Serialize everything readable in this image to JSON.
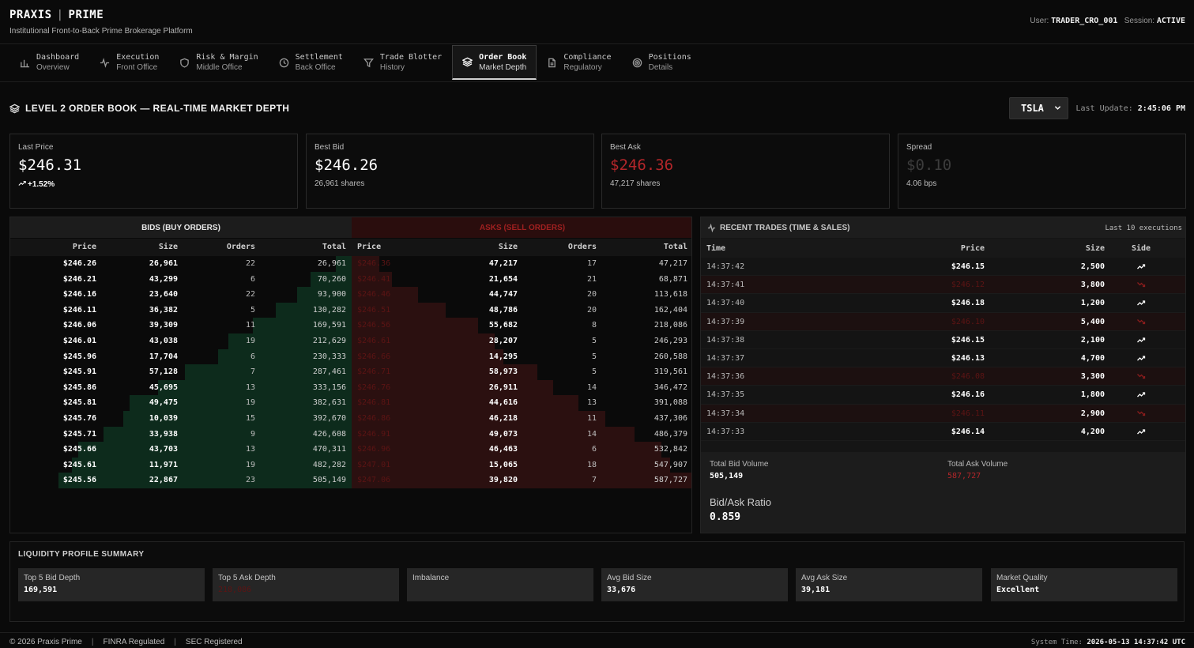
{
  "header": {
    "brand_left": "PRAXIS",
    "brand_sep": "|",
    "brand_right": "PRIME",
    "tagline": "Institutional Front-to-Back Prime Brokerage Platform",
    "user_label": "User:",
    "user_value": "TRADER_CRO_001",
    "session_label": "Session:",
    "session_value": "ACTIVE"
  },
  "nav": {
    "tabs": [
      {
        "title": "Dashboard",
        "subtitle": "Overview",
        "icon": "bar-chart-icon"
      },
      {
        "title": "Execution",
        "subtitle": "Front Office",
        "icon": "activity-icon"
      },
      {
        "title": "Risk & Margin",
        "subtitle": "Middle Office",
        "icon": "shield-icon"
      },
      {
        "title": "Settlement",
        "subtitle": "Back Office",
        "icon": "clock-icon"
      },
      {
        "title": "Trade Blotter",
        "subtitle": "History",
        "icon": "filter-icon"
      },
      {
        "title": "Order Book",
        "subtitle": "Market Depth",
        "icon": "layers-icon",
        "active": true
      },
      {
        "title": "Compliance",
        "subtitle": "Regulatory",
        "icon": "document-icon"
      },
      {
        "title": "Positions",
        "subtitle": "Details",
        "icon": "target-icon"
      }
    ]
  },
  "section": {
    "title": "LEVEL 2 ORDER BOOK — REAL-TIME MARKET DEPTH",
    "symbol": "TSLA",
    "last_update_label": "Last Update:",
    "last_update_value": "2:45:06 PM"
  },
  "stats": {
    "last_price": {
      "label": "Last Price",
      "value": "$246.31",
      "sub": "+1.52%"
    },
    "best_bid": {
      "label": "Best Bid",
      "value": "$246.26",
      "sub": "26,961 shares"
    },
    "best_ask": {
      "label": "Best Ask",
      "value": "$246.36",
      "sub": "47,217 shares"
    },
    "spread": {
      "label": "Spread",
      "value": "$0.10",
      "sub": "4.06 bps"
    }
  },
  "orderbook": {
    "bids_title": "BIDS (BUY ORDERS)",
    "asks_title": "ASKS (SELL ORDERS)",
    "columns": {
      "price": "Price",
      "size": "Size",
      "orders": "Orders",
      "total": "Total"
    },
    "max_total": 587727,
    "bids": [
      {
        "price": "$246.26",
        "size": "26,961",
        "orders": "22",
        "total": "26,961",
        "cum": 26961
      },
      {
        "price": "$246.21",
        "size": "43,299",
        "orders": "6",
        "total": "70,260",
        "cum": 70260
      },
      {
        "price": "$246.16",
        "size": "23,640",
        "orders": "22",
        "total": "93,900",
        "cum": 93900
      },
      {
        "price": "$246.11",
        "size": "36,382",
        "orders": "5",
        "total": "130,282",
        "cum": 130282
      },
      {
        "price": "$246.06",
        "size": "39,309",
        "orders": "11",
        "total": "169,591",
        "cum": 169591
      },
      {
        "price": "$246.01",
        "size": "43,038",
        "orders": "19",
        "total": "212,629",
        "cum": 212629
      },
      {
        "price": "$245.96",
        "size": "17,704",
        "orders": "6",
        "total": "230,333",
        "cum": 230333
      },
      {
        "price": "$245.91",
        "size": "57,128",
        "orders": "7",
        "total": "287,461",
        "cum": 287461
      },
      {
        "price": "$245.86",
        "size": "45,695",
        "orders": "13",
        "total": "333,156",
        "cum": 333156
      },
      {
        "price": "$245.81",
        "size": "49,475",
        "orders": "19",
        "total": "382,631",
        "cum": 382631
      },
      {
        "price": "$245.76",
        "size": "10,039",
        "orders": "15",
        "total": "392,670",
        "cum": 392670
      },
      {
        "price": "$245.71",
        "size": "33,938",
        "orders": "9",
        "total": "426,608",
        "cum": 426608
      },
      {
        "price": "$245.66",
        "size": "43,703",
        "orders": "13",
        "total": "470,311",
        "cum": 470311
      },
      {
        "price": "$245.61",
        "size": "11,971",
        "orders": "19",
        "total": "482,282",
        "cum": 482282
      },
      {
        "price": "$245.56",
        "size": "22,867",
        "orders": "23",
        "total": "505,149",
        "cum": 505149
      }
    ],
    "asks": [
      {
        "price": "$246.36",
        "size": "47,217",
        "orders": "17",
        "total": "47,217",
        "cum": 47217
      },
      {
        "price": "$246.41",
        "size": "21,654",
        "orders": "21",
        "total": "68,871",
        "cum": 68871
      },
      {
        "price": "$246.46",
        "size": "44,747",
        "orders": "20",
        "total": "113,618",
        "cum": 113618
      },
      {
        "price": "$246.51",
        "size": "48,786",
        "orders": "20",
        "total": "162,404",
        "cum": 162404
      },
      {
        "price": "$246.56",
        "size": "55,682",
        "orders": "8",
        "total": "218,086",
        "cum": 218086
      },
      {
        "price": "$246.61",
        "size": "28,207",
        "orders": "5",
        "total": "246,293",
        "cum": 246293
      },
      {
        "price": "$246.66",
        "size": "14,295",
        "orders": "5",
        "total": "260,588",
        "cum": 260588
      },
      {
        "price": "$246.71",
        "size": "58,973",
        "orders": "5",
        "total": "319,561",
        "cum": 319561
      },
      {
        "price": "$246.76",
        "size": "26,911",
        "orders": "14",
        "total": "346,472",
        "cum": 346472
      },
      {
        "price": "$246.81",
        "size": "44,616",
        "orders": "13",
        "total": "391,088",
        "cum": 391088
      },
      {
        "price": "$246.86",
        "size": "46,218",
        "orders": "11",
        "total": "437,306",
        "cum": 437306
      },
      {
        "price": "$246.91",
        "size": "49,073",
        "orders": "14",
        "total": "486,379",
        "cum": 486379
      },
      {
        "price": "$246.96",
        "size": "46,463",
        "orders": "6",
        "total": "532,842",
        "cum": 532842
      },
      {
        "price": "$247.01",
        "size": "15,065",
        "orders": "18",
        "total": "547,907",
        "cum": 547907
      },
      {
        "price": "$247.06",
        "size": "39,820",
        "orders": "7",
        "total": "587,727",
        "cum": 587727
      }
    ]
  },
  "trades": {
    "title": "RECENT TRADES (TIME & SALES)",
    "count_label": "Last 10 executions",
    "columns": {
      "time": "Time",
      "price": "Price",
      "size": "Size",
      "side": "Side"
    },
    "rows": [
      {
        "time": "14:37:42",
        "price": "$246.15",
        "size": "2,500",
        "side": "buy"
      },
      {
        "time": "14:37:41",
        "price": "$246.12",
        "size": "3,800",
        "side": "sell"
      },
      {
        "time": "14:37:40",
        "price": "$246.18",
        "size": "1,200",
        "side": "buy"
      },
      {
        "time": "14:37:39",
        "price": "$246.10",
        "size": "5,400",
        "side": "sell"
      },
      {
        "time": "14:37:38",
        "price": "$246.15",
        "size": "2,100",
        "side": "buy"
      },
      {
        "time": "14:37:37",
        "price": "$246.13",
        "size": "4,700",
        "side": "buy"
      },
      {
        "time": "14:37:36",
        "price": "$246.08",
        "size": "3,300",
        "side": "sell"
      },
      {
        "time": "14:37:35",
        "price": "$246.16",
        "size": "1,800",
        "side": "buy"
      },
      {
        "time": "14:37:34",
        "price": "$246.11",
        "size": "2,900",
        "side": "sell"
      },
      {
        "time": "14:37:33",
        "price": "$246.14",
        "size": "4,200",
        "side": "buy"
      }
    ],
    "total_bid_label": "Total Bid Volume",
    "total_bid_value": "505,149",
    "total_ask_label": "Total Ask Volume",
    "total_ask_value": "587,727",
    "ratio_label": "Bid/Ask Ratio",
    "ratio_value": "0.859"
  },
  "liquidity": {
    "title": "LIQUIDITY PROFILE SUMMARY",
    "cards": [
      {
        "label": "Top 5 Bid Depth",
        "value": "169,591"
      },
      {
        "label": "Top 5 Ask Depth",
        "value": "218,086"
      },
      {
        "label": "Imbalance",
        "value": ""
      },
      {
        "label": "Avg Bid Size",
        "value": "33,676"
      },
      {
        "label": "Avg Ask Size",
        "value": "39,181"
      },
      {
        "label": "Market Quality",
        "value": "Excellent"
      }
    ]
  },
  "footer": {
    "copyright": "© 2026 Praxis Prime",
    "finra": "FINRA Regulated",
    "sec": "SEC Registered",
    "system_time_label": "System Time:",
    "system_time_value": "2026-05-13 14:37:42 UTC"
  },
  "colors": {
    "bid_bar": "#0d2b1c",
    "ask_bar": "#2b1010",
    "ask_text": "#b3262a",
    "background": "#0a0a0a"
  }
}
